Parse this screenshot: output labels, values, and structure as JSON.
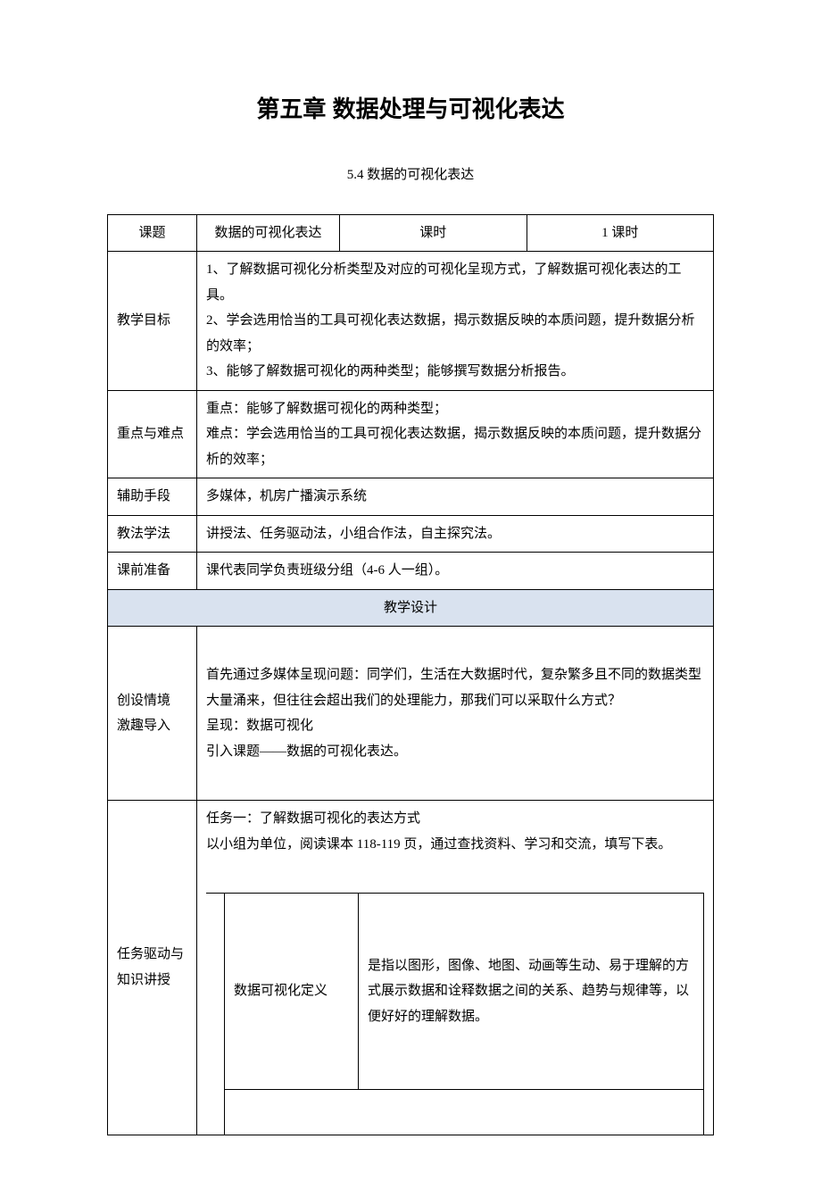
{
  "chapter_title": "第五章 数据处理与可视化表达",
  "section_title": "5.4   数据的可视化表达",
  "header": {
    "topic_label": "课题",
    "topic_value": "数据的可视化表达",
    "time_label": "课时",
    "time_value": "1 课时"
  },
  "rows": {
    "objective": {
      "label": "教学目标",
      "content": "1、了解数据可视化分析类型及对应的可视化呈现方式，了解数据可视化表达的工具。\n2、学会选用恰当的工具可视化表达数据，揭示数据反映的本质问题，提升数据分析的效率；\n3、能够了解数据可视化的两种类型；能够撰写数据分析报告。"
    },
    "keypoints": {
      "label": "重点与难点",
      "content": "重点：能够了解数据可视化的两种类型；\n难点：学会选用恰当的工具可视化表达数据，揭示数据反映的本质问题，提升数据分析的效率；"
    },
    "aids": {
      "label": "辅助手段",
      "content": "多媒体，机房广播演示系统"
    },
    "methods": {
      "label": "教法学法",
      "content": "讲授法、任务驱动法，小组合作法，自主探究法。"
    },
    "prep": {
      "label": "课前准备",
      "content": "课代表同学负责班级分组（4-6 人一组）。"
    },
    "design_header": "教学设计",
    "intro": {
      "label": "创设情境\n激趣导入",
      "content": "首先通过多媒体呈现问题：同学们，生活在大数据时代，复杂繁多且不同的数据类型大量涌来，但往往会超出我们的处理能力，那我们可以采取什么方式？\n呈现：数据可视化\n引入课题——数据的可视化表达。"
    },
    "task": {
      "label": "任务驱动与\n知识讲授",
      "intro": "任务一：了解数据可视化的表达方式\n以小组为单位，阅读课本 118-119 页，通过查找资料、学习和交流，填写下表。",
      "inner": {
        "def_label": "数据可视化定义",
        "def_content": "是指以图形，图像、地图、动画等生动、易于理解的方式展示数据和诠释数据之间的关系、趋势与规律等，以便好好的理解数据。"
      }
    }
  },
  "colors": {
    "design_header_bg": "#d9e2ef",
    "border": "#000000",
    "text": "#000000",
    "background": "#ffffff"
  },
  "fonts": {
    "title_size_pt": 20,
    "body_size_pt": 11
  }
}
